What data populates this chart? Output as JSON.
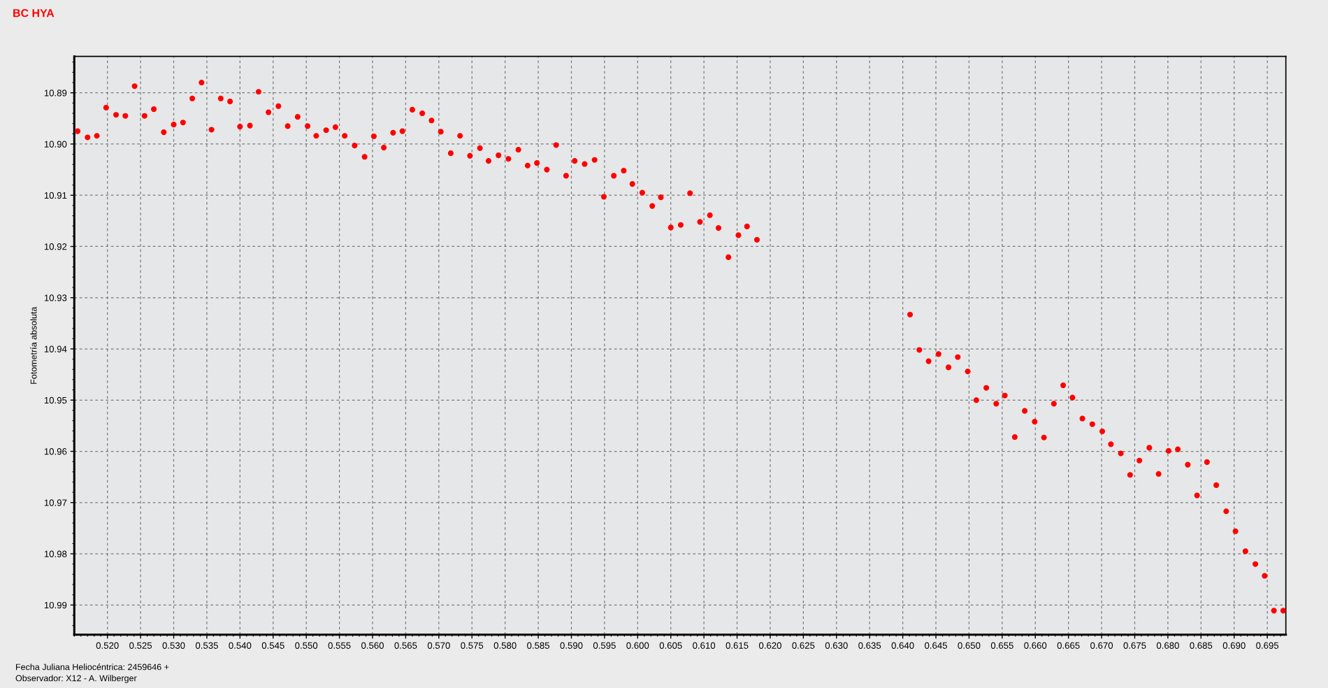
{
  "chart_data": {
    "type": "scatter",
    "title": "BC HYA",
    "xlabel": "Fecha Juliana Heliocéntrica: 2459646 +",
    "ylabel": "Fotometría absoluta",
    "annotations": [
      "Observador: X12 - A. Wilberger"
    ],
    "x": [
      0.5155,
      0.517,
      0.5184,
      0.5198,
      0.5213,
      0.5227,
      0.5241,
      0.5256,
      0.527,
      0.5285,
      0.53,
      0.5314,
      0.5328,
      0.5342,
      0.5357,
      0.5371,
      0.5385,
      0.54,
      0.5415,
      0.5428,
      0.5443,
      0.5458,
      0.5472,
      0.5487,
      0.5502,
      0.5515,
      0.553,
      0.5544,
      0.5558,
      0.5573,
      0.5588,
      0.5602,
      0.5617,
      0.5631,
      0.5645,
      0.566,
      0.5675,
      0.5689,
      0.5703,
      0.5718,
      0.5732,
      0.5747,
      0.5762,
      0.5775,
      0.579,
      0.5805,
      0.582,
      0.5834,
      0.5848,
      0.5863,
      0.5877,
      0.5892,
      0.5905,
      0.592,
      0.5935,
      0.5949,
      0.5964,
      0.5979,
      0.5992,
      0.6007,
      0.6022,
      0.6035,
      0.605,
      0.6065,
      0.6079,
      0.6094,
      0.6109,
      0.6122,
      0.6137,
      0.6152,
      0.6165,
      0.618,
      0.6411,
      0.6425,
      0.6439,
      0.6454,
      0.6469,
      0.6483,
      0.6498,
      0.6511,
      0.6526,
      0.6541,
      0.6554,
      0.6569,
      0.6584,
      0.6599,
      0.6613,
      0.6628,
      0.6642,
      0.6656,
      0.6671,
      0.6686,
      0.6701,
      0.6714,
      0.6729,
      0.6743,
      0.6757,
      0.6772,
      0.6786,
      0.6801,
      0.6815,
      0.683,
      0.6844,
      0.6859,
      0.6873,
      0.6888,
      0.6902,
      0.6917,
      0.6932,
      0.6946,
      0.696,
      0.6974
    ],
    "series": [
      {
        "color": "#ff0000",
        "values": [
          10.8975,
          10.8987,
          10.8984,
          10.8929,
          10.8943,
          10.8945,
          10.8887,
          10.8945,
          10.8932,
          10.8977,
          10.8962,
          10.8958,
          10.8911,
          10.888,
          10.8972,
          10.8911,
          10.8917,
          10.8966,
          10.8964,
          10.8898,
          10.8938,
          10.8926,
          10.8965,
          10.8947,
          10.8965,
          10.8984,
          10.8973,
          10.8967,
          10.8984,
          10.9003,
          10.9025,
          10.8985,
          10.9007,
          10.8978,
          10.8975,
          10.8933,
          10.894,
          10.8954,
          10.8976,
          10.9018,
          10.8984,
          10.9023,
          10.9008,
          10.9033,
          10.9022,
          10.9029,
          10.9011,
          10.9042,
          10.9037,
          10.905,
          10.9002,
          10.9062,
          10.9033,
          10.9039,
          10.9031,
          10.9103,
          10.9062,
          10.9052,
          10.9078,
          10.9095,
          10.9121,
          10.9104,
          10.9163,
          10.9158,
          10.9096,
          10.9152,
          10.9139,
          10.9164,
          10.9221,
          10.9178,
          10.9161,
          10.9187,
          10.9333,
          10.9402,
          10.9424,
          10.941,
          10.9436,
          10.9416,
          10.9444,
          10.95,
          10.9476,
          10.9507,
          10.9491,
          10.9572,
          10.9521,
          10.9542,
          10.9573,
          10.9507,
          10.9471,
          10.9495,
          10.9536,
          10.9547,
          10.9561,
          10.9586,
          10.9604,
          10.9646,
          10.9618,
          10.9593,
          10.9644,
          10.9599,
          10.9596,
          10.9626,
          10.9686,
          10.9621,
          10.9666,
          10.9717,
          10.9756,
          10.9795,
          10.982,
          10.9843,
          10.9911,
          10.9911
        ]
      }
    ],
    "xlim": [
      0.515,
      0.6978
    ],
    "ylim": [
      10.9958,
      10.8829
    ],
    "xticks": [
      {
        "value": 0.52,
        "label": "0.520"
      },
      {
        "value": 0.525,
        "label": "0.525"
      },
      {
        "value": 0.53,
        "label": "0.530"
      },
      {
        "value": 0.535,
        "label": "0.535"
      },
      {
        "value": 0.54,
        "label": "0.540"
      },
      {
        "value": 0.545,
        "label": "0.545"
      },
      {
        "value": 0.55,
        "label": "0.550"
      },
      {
        "value": 0.555,
        "label": "0.555"
      },
      {
        "value": 0.56,
        "label": "0.560"
      },
      {
        "value": 0.565,
        "label": "0.565"
      },
      {
        "value": 0.57,
        "label": "0.570"
      },
      {
        "value": 0.575,
        "label": "0.575"
      },
      {
        "value": 0.58,
        "label": "0.580"
      },
      {
        "value": 0.585,
        "label": "0.585"
      },
      {
        "value": 0.59,
        "label": "0.590"
      },
      {
        "value": 0.595,
        "label": "0.595"
      },
      {
        "value": 0.6,
        "label": "0.600"
      },
      {
        "value": 0.605,
        "label": "0.605"
      },
      {
        "value": 0.61,
        "label": "0.610"
      },
      {
        "value": 0.615,
        "label": "0.615"
      },
      {
        "value": 0.62,
        "label": "0.620"
      },
      {
        "value": 0.625,
        "label": "0.625"
      },
      {
        "value": 0.63,
        "label": "0.630"
      },
      {
        "value": 0.635,
        "label": "0.635"
      },
      {
        "value": 0.64,
        "label": "0.640"
      },
      {
        "value": 0.645,
        "label": "0.645"
      },
      {
        "value": 0.65,
        "label": "0.650"
      },
      {
        "value": 0.655,
        "label": "0.655"
      },
      {
        "value": 0.66,
        "label": "0.660"
      },
      {
        "value": 0.665,
        "label": "0.665"
      },
      {
        "value": 0.67,
        "label": "0.670"
      },
      {
        "value": 0.675,
        "label": "0.675"
      },
      {
        "value": 0.68,
        "label": "0.680"
      },
      {
        "value": 0.685,
        "label": "0.685"
      },
      {
        "value": 0.69,
        "label": "0.690"
      },
      {
        "value": 0.695,
        "label": "0.695"
      }
    ],
    "yticks": [
      10.89,
      {
        "value": 10.9,
        "label": "10.90"
      },
      10.91,
      10.92,
      10.93,
      10.94,
      10.95,
      10.96,
      10.97,
      10.98,
      10.99
    ],
    "grid": true,
    "marker": "circle"
  }
}
